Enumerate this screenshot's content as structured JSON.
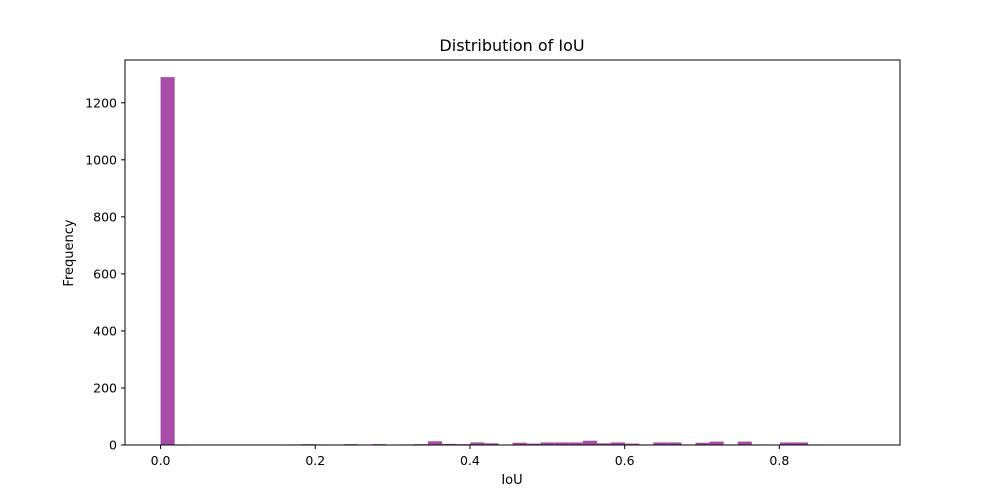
{
  "chart_data": {
    "type": "bar",
    "title": "Distribution of IoU",
    "xlabel": "IoU",
    "ylabel": "Frequency",
    "xlim": [
      -0.046,
      0.956
    ],
    "ylim": [
      0,
      1350
    ],
    "bar_color": "#a64ca6",
    "x_ticks": [
      0.0,
      0.2,
      0.4,
      0.6,
      0.8
    ],
    "x_tick_labels": [
      "0.0",
      "0.2",
      "0.4",
      "0.6",
      "0.8"
    ],
    "y_ticks": [
      0,
      200,
      400,
      600,
      800,
      1000,
      1200
    ],
    "y_tick_labels": [
      "0",
      "200",
      "400",
      "600",
      "800",
      "1000",
      "1200"
    ],
    "bin_width": 0.0182,
    "bin_starts": [
      0.0,
      0.0182,
      0.1638,
      0.182,
      0.2002,
      0.2366,
      0.273,
      0.3094,
      0.3276,
      0.3458,
      0.364,
      0.3822,
      0.4004,
      0.4186,
      0.455,
      0.4732,
      0.4914,
      0.5096,
      0.5278,
      0.546,
      0.5642,
      0.5824,
      0.6006,
      0.6188,
      0.637,
      0.6552,
      0.6734,
      0.6916,
      0.7098,
      0.728,
      0.7462,
      0.7644,
      0.8008,
      0.819,
      0.8372
    ],
    "values": [
      1290,
      2,
      2,
      3,
      2,
      3,
      3,
      2,
      3,
      13,
      4,
      3,
      9,
      6,
      8,
      5,
      9,
      9,
      9,
      15,
      6,
      9,
      5,
      2,
      9,
      9,
      2,
      8,
      12,
      2,
      12,
      2,
      9,
      9,
      2
    ]
  }
}
